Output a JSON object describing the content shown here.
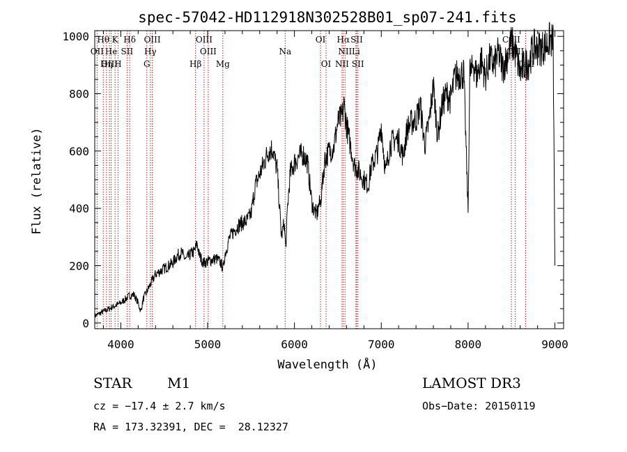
{
  "chart_data": {
    "type": "line",
    "title": "spec-57042-HD112918N302528B01_sp07-241.fits",
    "xlabel": "Wavelength (Å)",
    "ylabel": "Flux (relative)",
    "xlim": [
      3700,
      9100
    ],
    "ylim": [
      -20,
      1020
    ],
    "xticks": [
      4000,
      5000,
      6000,
      7000,
      8000,
      9000
    ],
    "yticks": [
      0,
      200,
      400,
      600,
      800,
      1000
    ],
    "series": [
      {
        "name": "spectrum",
        "x": [
          3700,
          3800,
          3900,
          4000,
          4100,
          4150,
          4200,
          4230,
          4260,
          4300,
          4350,
          4400,
          4450,
          4500,
          4550,
          4600,
          4650,
          4700,
          4750,
          4800,
          4850,
          4880,
          4900,
          4950,
          5000,
          5050,
          5100,
          5150,
          5180,
          5200,
          5250,
          5300,
          5350,
          5400,
          5450,
          5500,
          5550,
          5600,
          5650,
          5700,
          5750,
          5780,
          5800,
          5850,
          5880,
          5900,
          5920,
          5950,
          6000,
          6050,
          6100,
          6150,
          6200,
          6230,
          6260,
          6280,
          6300,
          6350,
          6400,
          6450,
          6500,
          6550,
          6570,
          6600,
          6630,
          6660,
          6690,
          6720,
          6760,
          6800,
          6850,
          6880,
          6920,
          6960,
          7000,
          7050,
          7100,
          7150,
          7200,
          7250,
          7300,
          7350,
          7400,
          7450,
          7500,
          7550,
          7600,
          7650,
          7700,
          7750,
          7800,
          7850,
          7900,
          7950,
          8000,
          8020,
          8040,
          8060,
          8100,
          8150,
          8200,
          8250,
          8300,
          8350,
          8400,
          8450,
          8500,
          8550,
          8600,
          8650,
          8700,
          8750,
          8800,
          8850,
          8900,
          8950,
          8980,
          9000
        ],
        "y": [
          25,
          40,
          55,
          70,
          95,
          100,
          70,
          40,
          85,
          110,
          140,
          170,
          180,
          190,
          200,
          210,
          235,
          245,
          220,
          240,
          250,
          280,
          240,
          210,
          215,
          220,
          225,
          210,
          190,
          240,
          295,
          320,
          340,
          350,
          355,
          380,
          480,
          520,
          560,
          600,
          610,
          560,
          540,
          300,
          350,
          260,
          400,
          520,
          560,
          580,
          590,
          560,
          420,
          390,
          380,
          410,
          420,
          570,
          600,
          610,
          700,
          720,
          760,
          690,
          640,
          600,
          550,
          540,
          520,
          500,
          480,
          540,
          570,
          600,
          690,
          520,
          620,
          640,
          640,
          580,
          680,
          700,
          710,
          760,
          620,
          700,
          830,
          650,
          760,
          800,
          780,
          860,
          870,
          870,
          390,
          880,
          870,
          910,
          860,
          920,
          860,
          920,
          900,
          940,
          890,
          930,
          980,
          940,
          870,
          900,
          910,
          960,
          960,
          960,
          970,
          990,
          980,
          200
        ]
      }
    ],
    "emission_lines": [
      {
        "label": "Hθ",
        "wavelength": 3798,
        "row": 1
      },
      {
        "label": "K",
        "wavelength": 3934,
        "row": 1
      },
      {
        "label": "Hδ",
        "wavelength": 4102,
        "row": 1
      },
      {
        "label": "OIII",
        "wavelength": 4363,
        "row": 1
      },
      {
        "label": "OIII",
        "wavelength": 4959,
        "row": 1
      },
      {
        "label": "OI",
        "wavelength": 6300,
        "row": 1
      },
      {
        "label": "Hα",
        "wavelength": 6563,
        "row": 1
      },
      {
        "label": "SII",
        "wavelength": 6717,
        "row": 1
      },
      {
        "label": "CaII",
        "wavelength": 8498,
        "row": 1
      },
      {
        "label": "OII",
        "wavelength": 3727,
        "row": 2
      },
      {
        "label": "He",
        "wavelength": 3889,
        "row": 2
      },
      {
        "label": "SII",
        "wavelength": 4072,
        "row": 2
      },
      {
        "label": "Hγ",
        "wavelength": 4340,
        "row": 2
      },
      {
        "label": "OIII",
        "wavelength": 5007,
        "row": 2
      },
      {
        "label": "Na",
        "wavelength": 5893,
        "row": 2
      },
      {
        "label": "NII",
        "wavelength": 6583,
        "row": 2
      },
      {
        "label": "Li",
        "wavelength": 6708,
        "row": 2
      },
      {
        "label": "CaII",
        "wavelength": 8542,
        "row": 2
      },
      {
        "label": "OIII",
        "wavelength": 3869,
        "row": 3
      },
      {
        "label": "Hη",
        "wavelength": 3835,
        "row": 3
      },
      {
        "label": "H",
        "wavelength": 3968,
        "row": 3
      },
      {
        "label": "G",
        "wavelength": 4300,
        "row": 3
      },
      {
        "label": "Hβ",
        "wavelength": 4861,
        "row": 3
      },
      {
        "label": "Mg",
        "wavelength": 5175,
        "row": 3
      },
      {
        "label": "OI",
        "wavelength": 6364,
        "row": 3
      },
      {
        "label": "NII",
        "wavelength": 6548,
        "row": 3
      },
      {
        "label": "SII",
        "wavelength": 6731,
        "row": 3
      },
      {
        "label": "CaII",
        "wavelength": 8662,
        "row": 3
      }
    ]
  },
  "info": {
    "class": "STAR",
    "subclass": "M1",
    "survey": "LAMOST DR3",
    "cz": "cz = −17.4 ± 2.7 km/s",
    "obs_date": "Obs−Date: 20150119",
    "radec": "RA = 173.32391, DEC =  28.12327"
  },
  "colors": {
    "lines": "#b22222",
    "spectrum": "#000000"
  }
}
